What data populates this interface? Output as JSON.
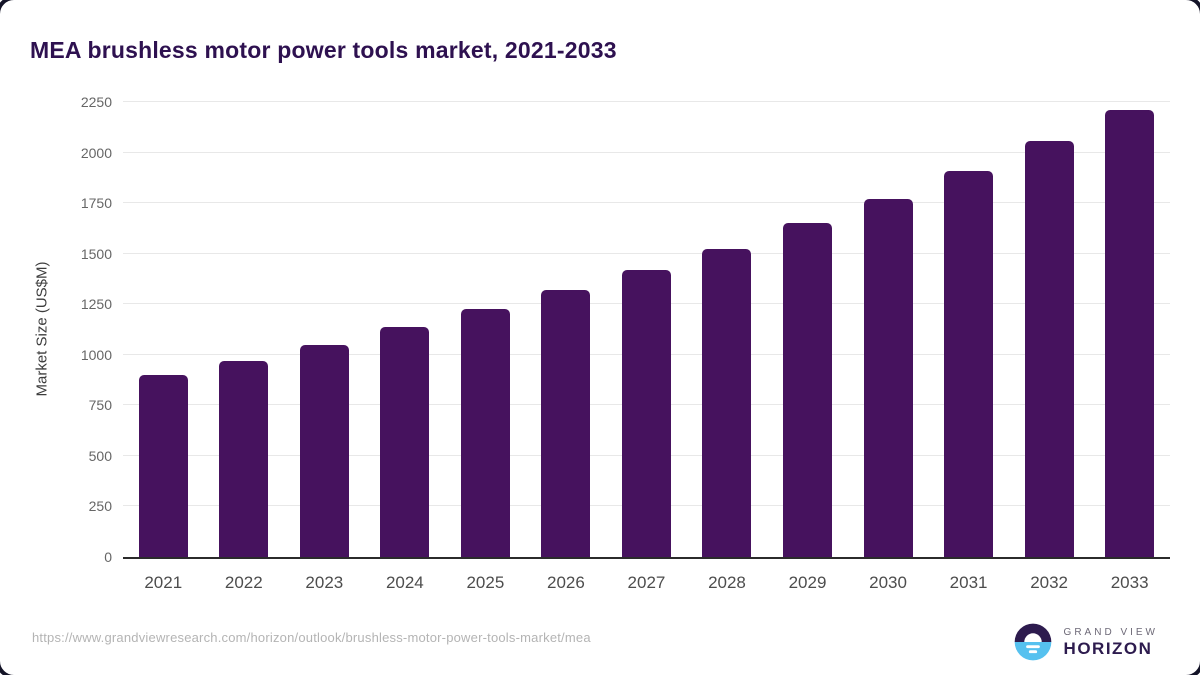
{
  "card": {
    "title": "MEA brushless motor power tools market, 2021-2033"
  },
  "chart_data": {
    "type": "bar",
    "title": "MEA brushless motor power tools market, 2021-2033",
    "categories": [
      "2021",
      "2022",
      "2023",
      "2024",
      "2025",
      "2026",
      "2027",
      "2028",
      "2029",
      "2030",
      "2031",
      "2032",
      "2033"
    ],
    "values": [
      900,
      970,
      1050,
      1135,
      1225,
      1320,
      1420,
      1525,
      1650,
      1770,
      1910,
      2055,
      2210
    ],
    "xlabel": "",
    "ylabel": "Market Size (US$M)",
    "ylim": [
      0,
      2250
    ],
    "yticks": [
      0,
      250,
      500,
      750,
      1000,
      1250,
      1500,
      1750,
      2000,
      2250
    ],
    "grid": true,
    "legend": "none",
    "bar_color": "#46125e"
  },
  "footer": {
    "source_url": "https://www.grandviewresearch.com/horizon/outlook/brushless-motor-power-tools-market/mea",
    "logo": {
      "line1": "GRAND VIEW",
      "line2": "HORIZON"
    }
  },
  "colors": {
    "title": "#2e1150",
    "bar": "#46125e",
    "axis_line": "#2b2b2b",
    "gridline": "#e8e8e8",
    "tick_label": "#666666",
    "x_label": "#4d4d4d",
    "url_text": "#b4b4b4",
    "logo_purple": "#2d1b4e",
    "logo_blue": "#56c1ef",
    "logo_gray": "#6d6977"
  }
}
